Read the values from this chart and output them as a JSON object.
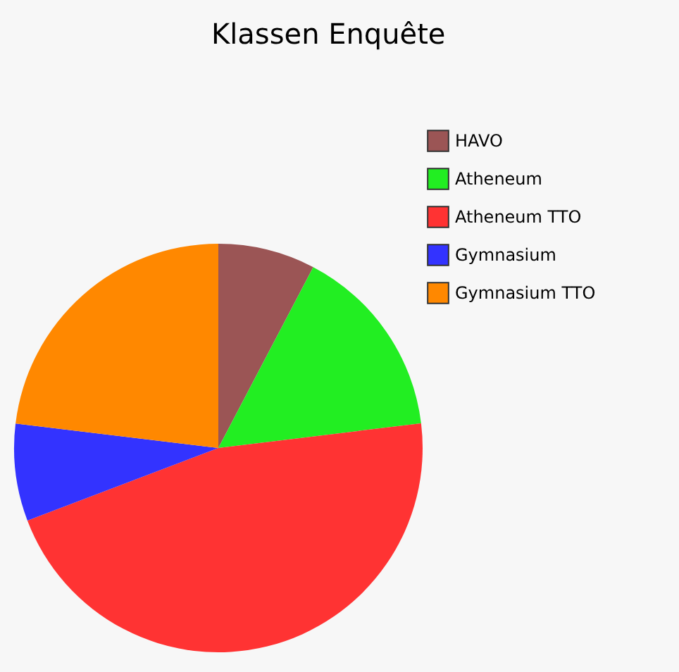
{
  "chart_data": {
    "type": "pie",
    "title": "Klassen Enquête",
    "categories": [
      "HAVO",
      "Atheneum",
      "Atheneum TTO",
      "Gymnasium",
      "Gymnasium TTO"
    ],
    "values": [
      7.69,
      15.38,
      46.15,
      7.69,
      23.09
    ],
    "colors": [
      "#9b5555",
      "#22ee22",
      "#ff3333",
      "#3333ff",
      "#ff8800"
    ],
    "legend": "top right"
  }
}
